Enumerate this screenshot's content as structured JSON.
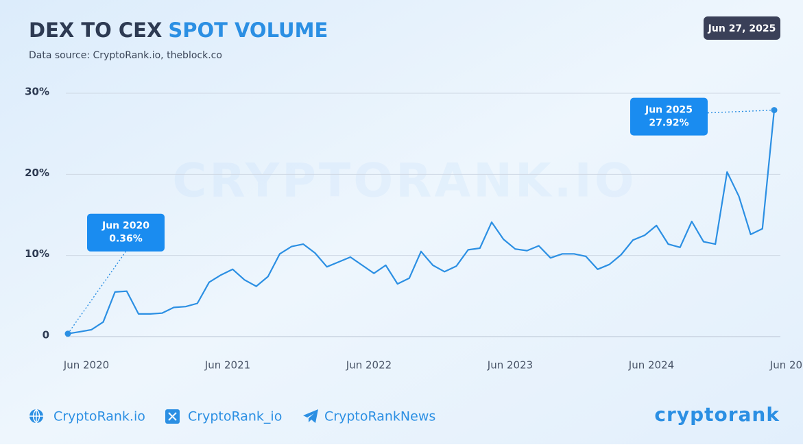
{
  "chart_data": {
    "type": "line",
    "title": "DEX TO CEX",
    "title_highlight": "SPOT VOLUME",
    "subtitle": "Data source: CryptoRank.io, theblock.co",
    "date": "Jun 27, 2025",
    "watermark": "CRYPTORANK.IO",
    "categories": [
      "Jun 2020",
      null,
      null,
      null,
      null,
      null,
      null,
      null,
      null,
      null,
      null,
      null,
      "Jun 2021",
      null,
      null,
      null,
      null,
      null,
      null,
      null,
      null,
      null,
      null,
      null,
      "Jun 2022",
      null,
      null,
      null,
      null,
      null,
      null,
      null,
      null,
      null,
      null,
      null,
      "Jun 2023",
      null,
      null,
      null,
      null,
      null,
      null,
      null,
      null,
      null,
      null,
      null,
      "Jun 2024",
      null,
      null,
      null,
      null,
      null,
      null,
      null,
      null,
      null,
      null,
      null,
      "Jun 2025"
    ],
    "values": [
      0.36,
      0.6,
      0.85,
      1.8,
      5.5,
      5.6,
      2.8,
      2.8,
      2.9,
      3.6,
      3.7,
      4.1,
      6.7,
      7.6,
      8.3,
      7.0,
      6.2,
      7.4,
      10.2,
      11.1,
      11.4,
      10.3,
      8.6,
      9.2,
      9.8,
      8.8,
      7.8,
      8.8,
      6.5,
      7.2,
      10.5,
      8.8,
      8.0,
      8.7,
      10.7,
      10.9,
      14.1,
      12.0,
      10.8,
      10.6,
      11.2,
      9.7,
      10.2,
      10.2,
      9.9,
      8.3,
      8.9,
      10.1,
      11.9,
      12.5,
      13.7,
      11.4,
      11.0,
      14.2,
      11.7,
      11.4,
      20.3,
      17.3,
      12.6,
      13.3,
      27.92
    ],
    "value_labels": [
      "0.36%",
      null,
      null,
      null,
      null,
      null,
      null,
      null,
      null,
      null,
      null,
      null,
      null,
      null,
      null,
      null,
      null,
      null,
      null,
      null,
      null,
      null,
      null,
      null,
      null,
      null,
      null,
      null,
      null,
      null,
      null,
      null,
      null,
      null,
      null,
      null,
      null,
      null,
      null,
      null,
      null,
      null,
      null,
      null,
      null,
      null,
      null,
      null,
      null,
      null,
      null,
      null,
      null,
      null,
      null,
      null,
      null,
      null,
      null,
      null,
      "27.92%"
    ],
    "color": "#2b8fe3",
    "ylim": [
      0,
      30
    ],
    "yticks": [
      0,
      {
        "value": 10,
        "label": "10%"
      },
      {
        "value": 20,
        "label": "20%"
      },
      {
        "value": 30,
        "label": "30%"
      }
    ],
    "grid": true
  },
  "footer": {
    "links": [
      "CryptoRank.io",
      "CryptoRank_io",
      "CryptoRankNews"
    ],
    "logo": "cryptorank"
  }
}
